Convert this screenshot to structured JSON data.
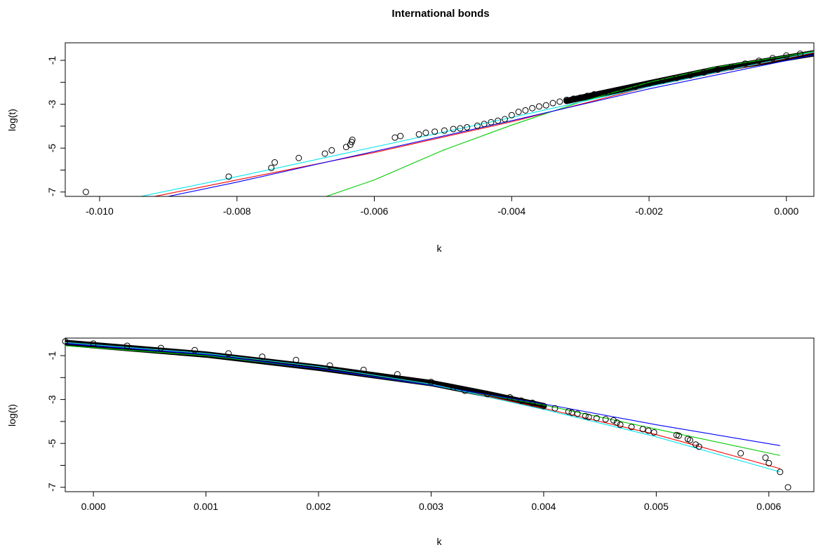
{
  "chart_data": [
    {
      "type": "scatter",
      "title": "International bonds",
      "xlabel": "k",
      "ylabel": "log(t)",
      "xlim": [
        -0.0105,
        0.0004
      ],
      "ylim": [
        -7.2,
        -0.2
      ],
      "xticks": [
        "-0.010",
        "-0.008",
        "-0.006",
        "-0.004",
        "-0.002",
        "0.000"
      ],
      "xtick_values": [
        -0.01,
        -0.008,
        -0.006,
        -0.004,
        -0.002,
        0.0
      ],
      "yticks": [
        "-1",
        "-3",
        "-5",
        "-7"
      ],
      "ytick_values": [
        -1,
        -3,
        -5,
        -7
      ],
      "points": [
        [
          -0.0102,
          -7.0
        ],
        [
          -0.00812,
          -6.3
        ],
        [
          -0.0075,
          -5.9
        ],
        [
          -0.00745,
          -5.65
        ],
        [
          -0.0071,
          -5.45
        ],
        [
          -0.00672,
          -5.25
        ],
        [
          -0.00662,
          -5.1
        ],
        [
          -0.00641,
          -4.95
        ],
        [
          -0.00635,
          -4.85
        ],
        [
          -0.00633,
          -4.72
        ],
        [
          -0.00632,
          -4.62
        ],
        [
          -0.0057,
          -4.52
        ],
        [
          -0.00562,
          -4.45
        ],
        [
          -0.00535,
          -4.37
        ],
        [
          -0.00525,
          -4.3
        ],
        [
          -0.00512,
          -4.25
        ],
        [
          -0.00498,
          -4.2
        ],
        [
          -0.00485,
          -4.13
        ],
        [
          -0.00475,
          -4.1
        ],
        [
          -0.00465,
          -4.05
        ],
        [
          -0.0045,
          -3.98
        ],
        [
          -0.0044,
          -3.9
        ],
        [
          -0.0043,
          -3.82
        ],
        [
          -0.0042,
          -3.75
        ],
        [
          -0.0041,
          -3.68
        ],
        [
          -0.004,
          -3.5
        ],
        [
          -0.0039,
          -3.35
        ],
        [
          -0.0038,
          -3.28
        ],
        [
          -0.0037,
          -3.18
        ],
        [
          -0.0036,
          -3.1
        ],
        [
          -0.0035,
          -3.05
        ],
        [
          -0.0034,
          -2.95
        ],
        [
          -0.0033,
          -2.88
        ],
        [
          -0.0032,
          -2.8
        ],
        [
          -0.0031,
          -2.75
        ],
        [
          -0.003,
          -2.7
        ],
        [
          -0.0029,
          -2.62
        ],
        [
          -0.0028,
          -2.55
        ],
        [
          -0.0026,
          -2.45
        ],
        [
          -0.0024,
          -2.32
        ],
        [
          -0.0022,
          -2.2
        ],
        [
          -0.002,
          -2.05
        ],
        [
          -0.0018,
          -1.92
        ],
        [
          -0.0016,
          -1.8
        ],
        [
          -0.0014,
          -1.68
        ],
        [
          -0.0012,
          -1.55
        ],
        [
          -0.001,
          -1.42
        ],
        [
          -0.0008,
          -1.3
        ],
        [
          -0.0006,
          -1.15
        ],
        [
          -0.0004,
          -1.02
        ],
        [
          -0.0002,
          -0.9
        ],
        [
          0.0,
          -0.78
        ],
        [
          0.0002,
          -0.7
        ]
      ],
      "series": [
        {
          "color": "#ff0000",
          "points": [
            [
              -0.0092,
              -7.2
            ],
            [
              -0.008,
              -6.45
            ],
            [
              -0.006,
              -5.2
            ],
            [
              -0.004,
              -3.8
            ],
            [
              -0.002,
              -2.2
            ],
            [
              0.0004,
              -0.65
            ]
          ]
        },
        {
          "color": "#00cc00",
          "points": [
            [
              -0.0067,
              -7.2
            ],
            [
              -0.006,
              -6.45
            ],
            [
              -0.005,
              -5.1
            ],
            [
              -0.004,
              -3.95
            ],
            [
              -0.003,
              -2.9
            ],
            [
              -0.002,
              -2.0
            ],
            [
              -0.001,
              -1.3
            ],
            [
              0.0004,
              -0.6
            ]
          ]
        },
        {
          "color": "#0000ff",
          "points": [
            [
              -0.009,
              -7.2
            ],
            [
              -0.008,
              -6.55
            ],
            [
              -0.006,
              -5.15
            ],
            [
              -0.004,
              -3.75
            ],
            [
              -0.002,
              -2.3
            ],
            [
              0.0004,
              -0.75
            ]
          ]
        },
        {
          "color": "#00e5ee",
          "points": [
            [
              -0.0094,
              -7.2
            ],
            [
              -0.008,
              -6.3
            ],
            [
              -0.006,
              -4.95
            ],
            [
              -0.004,
              -3.6
            ],
            [
              -0.002,
              -2.2
            ],
            [
              0.0004,
              -0.62
            ]
          ]
        }
      ]
    },
    {
      "type": "scatter",
      "title": "",
      "xlabel": "k",
      "ylabel": "log(t)",
      "xlim": [
        -0.00025,
        0.0064
      ],
      "ylim": [
        -7.2,
        -0.2
      ],
      "xticks": [
        "0.000",
        "0.001",
        "0.002",
        "0.003",
        "0.004",
        "0.005",
        "0.006"
      ],
      "xtick_values": [
        0.0,
        0.001,
        0.002,
        0.003,
        0.004,
        0.005,
        0.006
      ],
      "yticks": [
        "-1",
        "-3",
        "-5",
        "-7"
      ],
      "ytick_values": [
        -1,
        -3,
        -5,
        -7
      ],
      "points": [
        [
          -0.00025,
          -0.35
        ],
        [
          0.0,
          -0.45
        ],
        [
          0.0003,
          -0.55
        ],
        [
          0.0006,
          -0.65
        ],
        [
          0.0009,
          -0.75
        ],
        [
          0.0012,
          -0.9
        ],
        [
          0.0015,
          -1.05
        ],
        [
          0.0018,
          -1.2
        ],
        [
          0.0021,
          -1.45
        ],
        [
          0.0024,
          -1.65
        ],
        [
          0.0027,
          -1.85
        ],
        [
          0.003,
          -2.2
        ],
        [
          0.0032,
          -2.45
        ],
        [
          0.0033,
          -2.6
        ],
        [
          0.0035,
          -2.75
        ],
        [
          0.0037,
          -2.9
        ],
        [
          0.0038,
          -3.05
        ],
        [
          0.0039,
          -3.15
        ],
        [
          0.004,
          -3.3
        ],
        [
          0.0041,
          -3.4
        ],
        [
          0.00422,
          -3.55
        ],
        [
          0.00425,
          -3.6
        ],
        [
          0.0043,
          -3.65
        ],
        [
          0.00437,
          -3.75
        ],
        [
          0.0044,
          -3.8
        ],
        [
          0.00447,
          -3.85
        ],
        [
          0.00455,
          -3.9
        ],
        [
          0.00462,
          -3.95
        ],
        [
          0.00465,
          -4.05
        ],
        [
          0.00468,
          -4.15
        ],
        [
          0.00478,
          -4.25
        ],
        [
          0.00488,
          -4.35
        ],
        [
          0.00493,
          -4.42
        ],
        [
          0.00498,
          -4.5
        ],
        [
          0.00518,
          -4.62
        ],
        [
          0.0052,
          -4.65
        ],
        [
          0.00528,
          -4.8
        ],
        [
          0.0053,
          -4.85
        ],
        [
          0.00535,
          -5.05
        ],
        [
          0.00538,
          -5.15
        ],
        [
          0.00575,
          -5.45
        ],
        [
          0.00597,
          -5.65
        ],
        [
          0.006,
          -5.9
        ],
        [
          0.0061,
          -6.3
        ],
        [
          0.00617,
          -7.0
        ]
      ],
      "series": [
        {
          "color": "#ff0000",
          "points": [
            [
              -0.00025,
              -0.4
            ],
            [
              0.001,
              -0.9
            ],
            [
              0.002,
              -1.5
            ],
            [
              0.003,
              -2.3
            ],
            [
              0.004,
              -3.4
            ],
            [
              0.005,
              -4.6
            ],
            [
              0.0061,
              -6.15
            ]
          ]
        },
        {
          "color": "#00cc00",
          "points": [
            [
              -0.00025,
              -0.55
            ],
            [
              0.001,
              -1.0
            ],
            [
              0.002,
              -1.6
            ],
            [
              0.003,
              -2.35
            ],
            [
              0.004,
              -3.25
            ],
            [
              0.005,
              -4.35
            ],
            [
              0.0061,
              -5.55
            ]
          ]
        },
        {
          "color": "#0000ff",
          "points": [
            [
              -0.00025,
              -0.45
            ],
            [
              0.001,
              -0.95
            ],
            [
              0.002,
              -1.6
            ],
            [
              0.003,
              -2.35
            ],
            [
              0.004,
              -3.2
            ],
            [
              0.005,
              -4.15
            ],
            [
              0.0061,
              -5.1
            ]
          ]
        },
        {
          "color": "#00e5ee",
          "points": [
            [
              -0.00025,
              -0.4
            ],
            [
              0.001,
              -0.9
            ],
            [
              0.002,
              -1.5
            ],
            [
              0.003,
              -2.3
            ],
            [
              0.004,
              -3.45
            ],
            [
              0.005,
              -4.7
            ],
            [
              0.0061,
              -6.3
            ]
          ]
        }
      ]
    }
  ]
}
